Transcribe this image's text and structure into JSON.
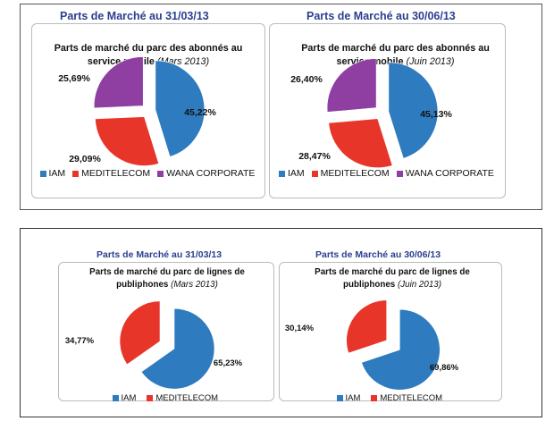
{
  "colors": {
    "iam": "#2e7bbf",
    "meditelecom": "#e8352a",
    "wana": "#8e3fa1"
  },
  "chart_data": [
    {
      "type": "pie",
      "heading": "Parts de Marché au 31/03/13",
      "title": "Parts de marché du parc des abonnés au service mobile",
      "period": "(Mars 2013)",
      "categories": [
        "IAM",
        "MEDITELECOM",
        "WANA CORPORATE"
      ],
      "values": [
        45.22,
        29.09,
        25.69
      ],
      "labels": [
        "45,22%",
        "29,09%",
        "25,69%"
      ],
      "legend": "bottom"
    },
    {
      "type": "pie",
      "heading": "Parts de Marché au 30/06/13",
      "title": "Parts de marché du parc des abonnés au service mobile",
      "period": "(Juin 2013)",
      "categories": [
        "IAM",
        "MEDITELECOM",
        "WANA CORPORATE"
      ],
      "values": [
        45.13,
        28.47,
        26.4
      ],
      "labels": [
        "45,13%",
        "28,47%",
        "26,40%"
      ],
      "legend": "bottom"
    },
    {
      "type": "pie",
      "heading": "Parts de Marché au 31/03/13",
      "title": "Parts de marché du parc de lignes de publiphones",
      "period": "(Mars 2013)",
      "categories": [
        "IAM",
        "MEDITELECOM"
      ],
      "values": [
        65.23,
        34.77
      ],
      "labels": [
        "65,23%",
        "34,77%"
      ],
      "legend": "bottom"
    },
    {
      "type": "pie",
      "heading": "Parts de Marché au 30/06/13",
      "title": "Parts de marché du parc de lignes de publiphones",
      "period": "(Juin 2013)",
      "categories": [
        "IAM",
        "MEDITELECOM"
      ],
      "values": [
        69.86,
        30.14
      ],
      "labels": [
        "69,86%",
        "30,14%"
      ],
      "legend": "bottom"
    }
  ]
}
